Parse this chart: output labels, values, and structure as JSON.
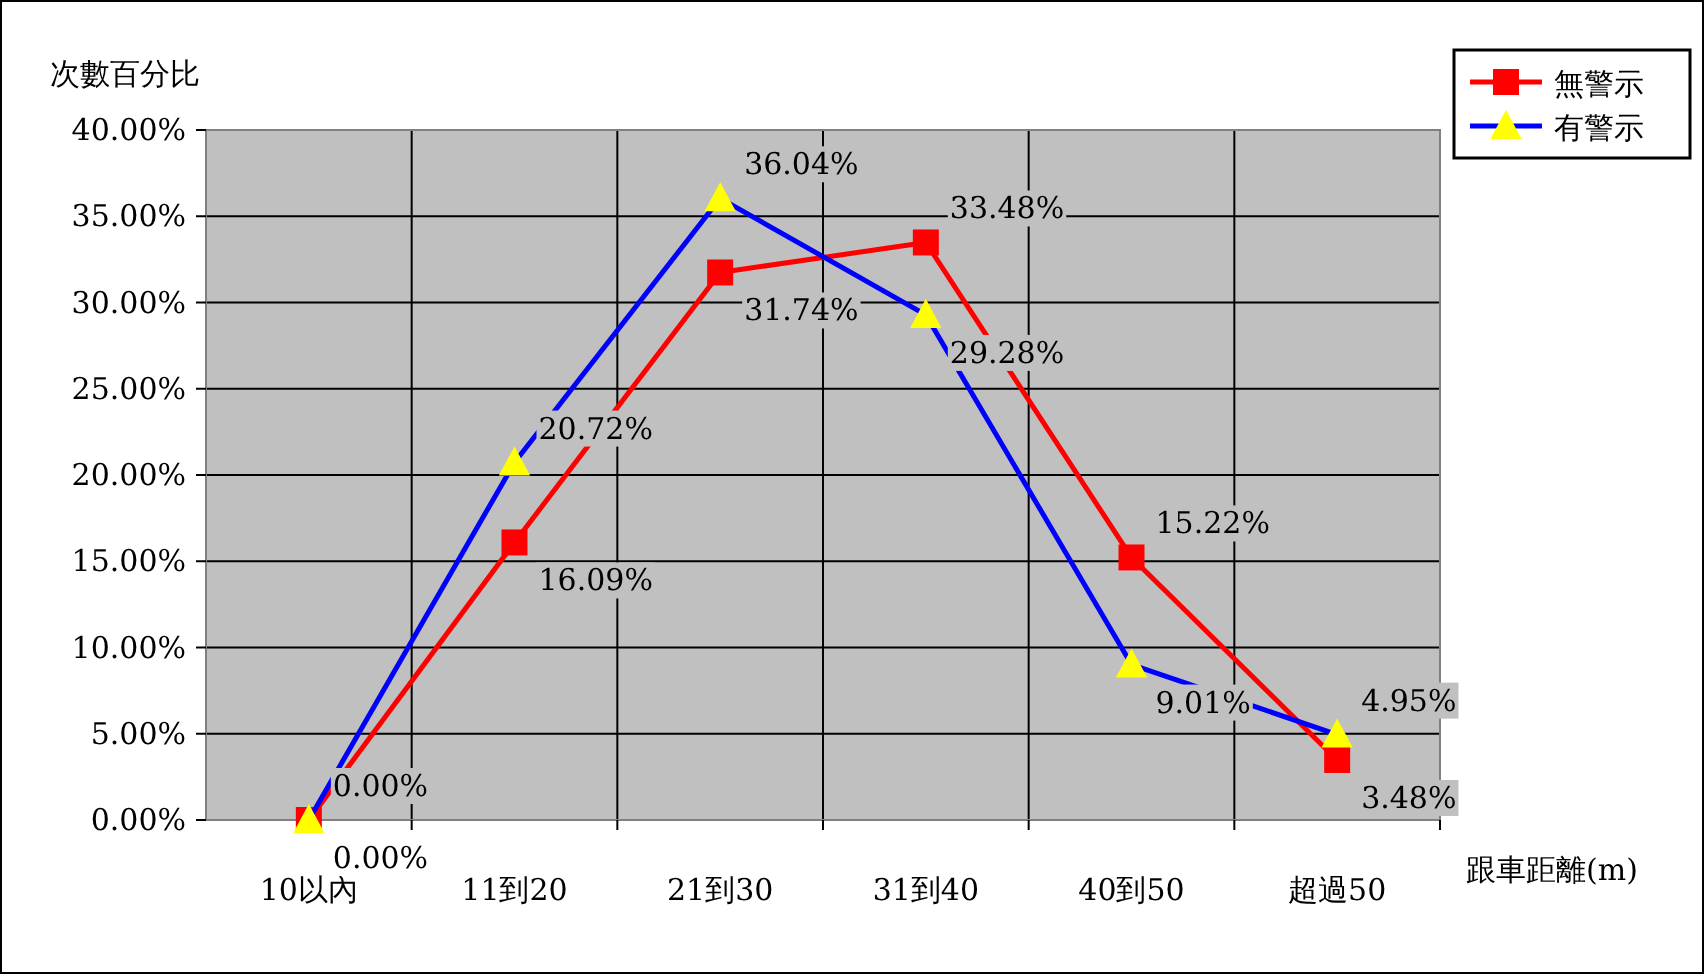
{
  "chart_data": {
    "type": "line",
    "ylabel": "次數百分比",
    "xlabel": "跟車距離(m)",
    "categories": [
      "10以內",
      "11到20",
      "21到30",
      "31到40",
      "40到50",
      "超過50"
    ],
    "series": [
      {
        "name": "無警示",
        "color": "#ff0000",
        "marker": "square",
        "values": [
          0,
          16.09,
          31.74,
          33.48,
          15.22,
          3.48
        ],
        "value_labels": [
          "0.00%",
          "16.09%",
          "31.74%",
          "33.48%",
          "15.22%",
          "3.48%"
        ]
      },
      {
        "name": "有警示",
        "color": "#0000ff",
        "marker": "triangle",
        "values": [
          0,
          20.72,
          36.04,
          29.28,
          9.01,
          4.95
        ],
        "value_labels": [
          "0.00%",
          "20.72%",
          "36.04%",
          "29.28%",
          "9.01%",
          "4.95%"
        ]
      }
    ],
    "ylim": [
      0,
      40
    ],
    "yticks": [
      {
        "value": 0,
        "label": "0.00%"
      },
      {
        "value": 5,
        "label": "5.00%"
      },
      {
        "value": 10,
        "label": "10.00%"
      },
      {
        "value": 15,
        "label": "15.00%"
      },
      {
        "value": 20,
        "label": "20.00%"
      },
      {
        "value": 25,
        "label": "25.00%"
      },
      {
        "value": 30,
        "label": "30.00%"
      },
      {
        "value": 35,
        "label": "35.00%"
      },
      {
        "value": 40,
        "label": "40.00%"
      }
    ],
    "grid": true,
    "legend": "top right"
  }
}
